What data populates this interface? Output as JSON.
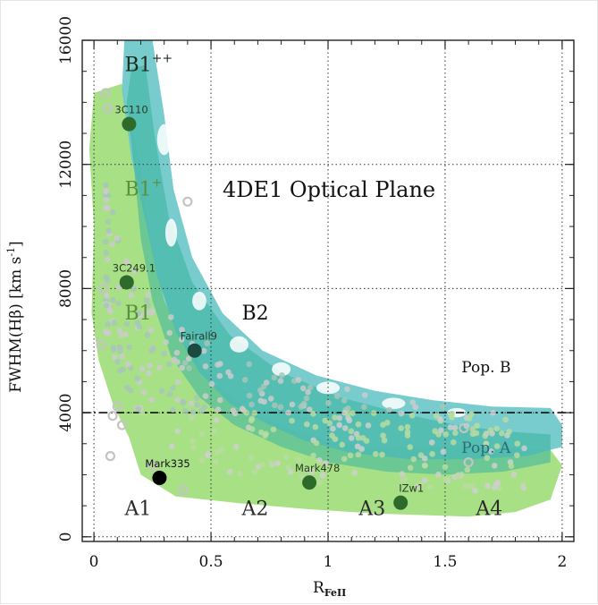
{
  "chart_data": {
    "type": "scatter",
    "title": "4DE1 Optical Plane",
    "xlabel_main": "R",
    "xlabel_sub": "FeII",
    "ylabel_main": "FWHM(Hβ) [km s",
    "ylabel_sup": "-1",
    "ylabel_end": "]",
    "xlim": [
      -0.05,
      2.05
    ],
    "ylim": [
      -150,
      16000
    ],
    "xticks": [
      0,
      0.5,
      1,
      1.5,
      2
    ],
    "xtick_labels": [
      "0",
      "0.5",
      "1",
      "1.5",
      "2"
    ],
    "yticks": [
      0,
      4000,
      8000,
      12000,
      16000
    ],
    "ytick_labels": [
      "0",
      "4000",
      "8000",
      "12000",
      "16000"
    ],
    "grid": "dotted, major ticks",
    "population_boundary_fwhm": 4000,
    "population_labels": [
      "Pop. B",
      "Pop. A"
    ],
    "bin_labels": [
      {
        "main": "B1",
        "sup": "++",
        "x": 0.12,
        "y": 15000
      },
      {
        "main": "B1",
        "sup": "+",
        "x": 0.12,
        "y": 11000
      },
      {
        "main": "B1",
        "sup": "",
        "x": 0.12,
        "y": 7000
      },
      {
        "main": "B2",
        "sup": "",
        "x": 0.62,
        "y": 7000
      },
      {
        "main": "A1",
        "sup": "",
        "x": 0.12,
        "y": 700
      },
      {
        "main": "A2",
        "sup": "",
        "x": 0.62,
        "y": 700
      },
      {
        "main": "A3",
        "sup": "",
        "x": 1.12,
        "y": 700
      },
      {
        "main": "A4",
        "sup": "",
        "x": 1.62,
        "y": 700
      }
    ],
    "named_sources": [
      {
        "name": "3C110",
        "x": 0.15,
        "y": 13300
      },
      {
        "name": "3C249.1",
        "x": 0.14,
        "y": 8200
      },
      {
        "name": "Fairall9",
        "x": 0.43,
        "y": 6000
      },
      {
        "name": "Mark335",
        "x": 0.28,
        "y": 1900
      },
      {
        "name": "Mark478",
        "x": 0.92,
        "y": 1750
      },
      {
        "name": "IZw1",
        "x": 1.31,
        "y": 1100
      }
    ],
    "colors": {
      "light_green": "#a8e085",
      "teal": "#6cc8c9",
      "dark_teal": "#38b39e",
      "light_points": "#c4c4c4",
      "named_point_dark": "#2e6b2a",
      "named_point_black": "#000000",
      "bin_label_green": "#5a8f3c"
    }
  }
}
